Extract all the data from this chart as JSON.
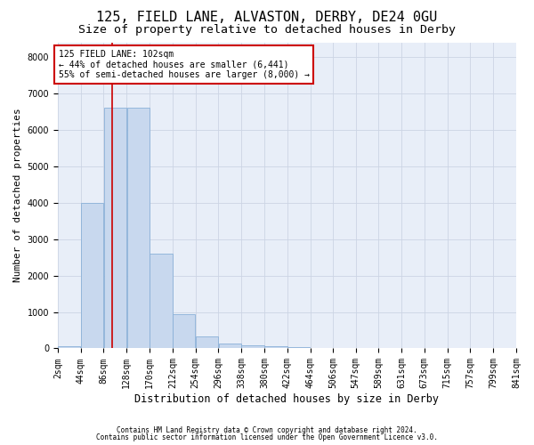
{
  "title1": "125, FIELD LANE, ALVASTON, DERBY, DE24 0GU",
  "title2": "Size of property relative to detached houses in Derby",
  "xlabel": "Distribution of detached houses by size in Derby",
  "ylabel": "Number of detached properties",
  "footer1": "Contains HM Land Registry data © Crown copyright and database right 2024.",
  "footer2": "Contains public sector information licensed under the Open Government Licence v3.0.",
  "annotation_title": "125 FIELD LANE: 102sqm",
  "annotation_line1": "← 44% of detached houses are smaller (6,441)",
  "annotation_line2": "55% of semi-detached houses are larger (8,000) →",
  "property_size": 102,
  "bin_edges": [
    2,
    44,
    86,
    128,
    170,
    212,
    254,
    296,
    338,
    380,
    422,
    464,
    506,
    547,
    589,
    631,
    673,
    715,
    757,
    799,
    841
  ],
  "bar_heights": [
    50,
    4000,
    6600,
    6600,
    2600,
    950,
    330,
    140,
    80,
    60,
    30,
    20,
    15,
    10,
    8,
    5,
    4,
    3,
    2,
    2
  ],
  "bar_color": "#c8d8ee",
  "bar_edge_color": "#8ab0d8",
  "red_line_color": "#cc0000",
  "annotation_box_color": "#cc0000",
  "ylim": [
    0,
    8400
  ],
  "yticks": [
    0,
    1000,
    2000,
    3000,
    4000,
    5000,
    6000,
    7000,
    8000
  ],
  "grid_color": "#ccd4e4",
  "bg_color": "#e8eef8",
  "title1_fontsize": 11,
  "title2_fontsize": 9.5,
  "tick_fontsize": 7,
  "ylabel_fontsize": 8,
  "xlabel_fontsize": 8.5,
  "annotation_fontsize": 7,
  "footer_fontsize": 5.5
}
